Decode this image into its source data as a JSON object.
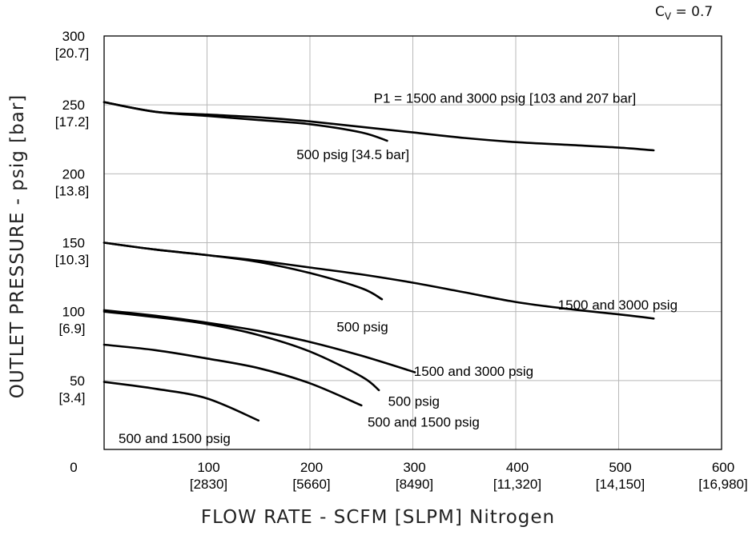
{
  "chart_data": {
    "type": "line",
    "title": "",
    "note_prefix": "C",
    "note_sub": "V",
    "note_suffix": " = 0.7",
    "xlabel": "FLOW RATE - SCFM [SLPM] Nitrogen",
    "ylabel": "OUTLET PRESSURE - psig [bar]",
    "xlim": [
      0,
      600
    ],
    "ylim": [
      0,
      300
    ],
    "grid": true,
    "x_ticks": [
      {
        "value": 0,
        "label": "0",
        "sub": ""
      },
      {
        "value": 100,
        "label": "100",
        "sub": "[2830]"
      },
      {
        "value": 200,
        "label": "200",
        "sub": "[5660]"
      },
      {
        "value": 300,
        "label": "300",
        "sub": "[8490]"
      },
      {
        "value": 400,
        "label": "400",
        "sub": "[11,320]"
      },
      {
        "value": 500,
        "label": "500",
        "sub": "[14,150]"
      },
      {
        "value": 600,
        "label": "600",
        "sub": "[16,980]"
      }
    ],
    "y_ticks": [
      {
        "value": 300,
        "label": "300",
        "sub": "[20.7]"
      },
      {
        "value": 250,
        "label": "250",
        "sub": "[17.2]"
      },
      {
        "value": 200,
        "label": "200",
        "sub": "[13.8]"
      },
      {
        "value": 150,
        "label": "150",
        "sub": "[10.3]"
      },
      {
        "value": 100,
        "label": "100",
        "sub": "[6.9]"
      },
      {
        "value": 50,
        "label": "50",
        "sub": "[3.4]"
      }
    ],
    "series": [
      {
        "name": "P1 = 1500 and 3000 psig [103 and 207 bar]",
        "label_x": 262,
        "label_y": 255,
        "x": [
          0,
          50,
          100,
          150,
          200,
          250,
          300,
          350,
          400,
          450,
          500,
          534
        ],
        "y": [
          252,
          245,
          243,
          241,
          238,
          234,
          230,
          226,
          223,
          221,
          219,
          217
        ]
      },
      {
        "name": "500 psig [34.5 bar]",
        "label_x": 187,
        "label_y": 214,
        "x": [
          0,
          50,
          100,
          150,
          200,
          250,
          275
        ],
        "y": [
          252,
          245,
          242,
          239,
          236,
          230,
          224
        ]
      },
      {
        "name": "1500 and 3000 psig",
        "label_x": 441,
        "label_y": 105,
        "x": [
          0,
          50,
          100,
          150,
          200,
          250,
          300,
          350,
          400,
          450,
          500,
          534
        ],
        "y": [
          150,
          145,
          141,
          137,
          132,
          127,
          121,
          114,
          107,
          102,
          98,
          95
        ]
      },
      {
        "name": "500 psig",
        "label_x": 226,
        "label_y": 89,
        "x": [
          0,
          50,
          100,
          150,
          200,
          250,
          270
        ],
        "y": [
          150,
          145,
          141,
          136,
          128,
          117,
          109
        ]
      },
      {
        "name": "1500 and 3000 psig",
        "label_x": 301,
        "label_y": 57,
        "x": [
          0,
          50,
          100,
          150,
          200,
          250,
          302
        ],
        "y": [
          101,
          97,
          92,
          86,
          78,
          68,
          56
        ]
      },
      {
        "name": "500 psig",
        "label_x": 276,
        "label_y": 35,
        "x": [
          0,
          50,
          100,
          150,
          200,
          250,
          267
        ],
        "y": [
          100,
          96,
          91,
          83,
          71,
          53,
          43
        ]
      },
      {
        "name": "500 and 1500 psig",
        "label_x": 256,
        "label_y": 20,
        "x": [
          0,
          50,
          100,
          150,
          200,
          250
        ],
        "y": [
          76,
          72,
          66,
          59,
          48,
          32
        ]
      },
      {
        "name": "500 and 1500 psig",
        "label_x": 14,
        "label_y": 8,
        "x": [
          0,
          50,
          100,
          150
        ],
        "y": [
          49,
          44,
          37,
          21
        ]
      }
    ]
  }
}
